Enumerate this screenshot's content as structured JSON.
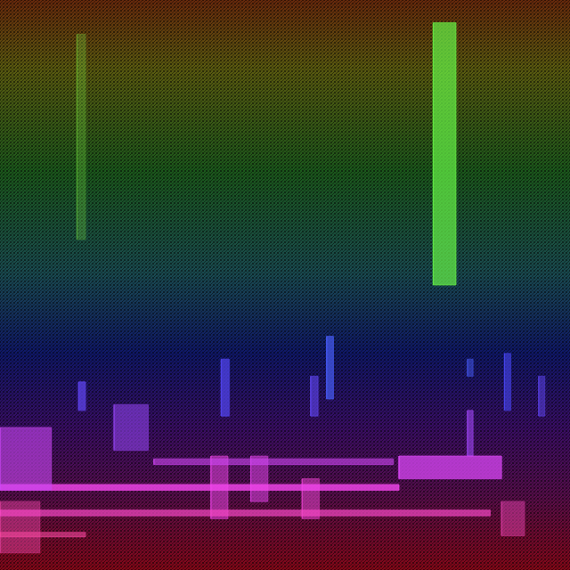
{
  "chart_data": {
    "type": "spectrogram",
    "tick_labels": false,
    "grid": false,
    "xlim": [
      0,
      100
    ],
    "ylim": [
      0,
      100
    ],
    "events": [
      {
        "x": [
          76,
          80
        ],
        "y": [
          50,
          96
        ],
        "level": 0.7
      },
      {
        "x": [
          13.5,
          15
        ],
        "y": [
          58,
          94
        ],
        "level": 0.25
      },
      {
        "x": [
          13.8,
          15
        ],
        "y": [
          28,
          33
        ],
        "level": 0.7
      },
      {
        "x": [
          38.8,
          40.2
        ],
        "y": [
          27,
          37
        ],
        "level": 0.7
      },
      {
        "x": [
          54.5,
          55.8
        ],
        "y": [
          27,
          34
        ],
        "level": 0.6
      },
      {
        "x": [
          57.3,
          58.5
        ],
        "y": [
          30,
          41
        ],
        "level": 0.7
      },
      {
        "x": [
          82,
          83
        ],
        "y": [
          34,
          37
        ],
        "level": 0.5
      },
      {
        "x": [
          88.5,
          89.6
        ],
        "y": [
          28,
          38
        ],
        "level": 0.6
      },
      {
        "x": [
          94.5,
          95.6
        ],
        "y": [
          27,
          34
        ],
        "level": 0.5
      },
      {
        "x": [
          20,
          26
        ],
        "y": [
          21,
          29
        ],
        "level": 0.55
      },
      {
        "x": [
          70,
          88
        ],
        "y": [
          16,
          20
        ],
        "level": 0.75
      },
      {
        "x": [
          82,
          83
        ],
        "y": [
          20,
          28
        ],
        "level": 0.6
      },
      {
        "x": [
          0,
          9
        ],
        "y": [
          14,
          25
        ],
        "level": 0.6
      },
      {
        "x": [
          0,
          70
        ],
        "y": [
          14,
          15
        ],
        "level": 0.8
      },
      {
        "x": [
          0,
          86
        ],
        "y": [
          9.5,
          10.5
        ],
        "level": 0.7
      },
      {
        "x": [
          0,
          15
        ],
        "y": [
          5.8,
          6.6
        ],
        "level": 0.6
      },
      {
        "x": [
          27,
          69
        ],
        "y": [
          18.5,
          19.5
        ],
        "level": 0.6
      },
      {
        "x": [
          37,
          40
        ],
        "y": [
          9,
          20
        ],
        "level": 0.5
      },
      {
        "x": [
          44,
          47
        ],
        "y": [
          12,
          20
        ],
        "level": 0.5
      },
      {
        "x": [
          53,
          56
        ],
        "y": [
          9,
          16
        ],
        "level": 0.5
      },
      {
        "x": [
          0,
          7
        ],
        "y": [
          3,
          12
        ],
        "level": 0.45
      },
      {
        "x": [
          88,
          92
        ],
        "y": [
          6,
          12
        ],
        "level": 0.45
      }
    ]
  }
}
